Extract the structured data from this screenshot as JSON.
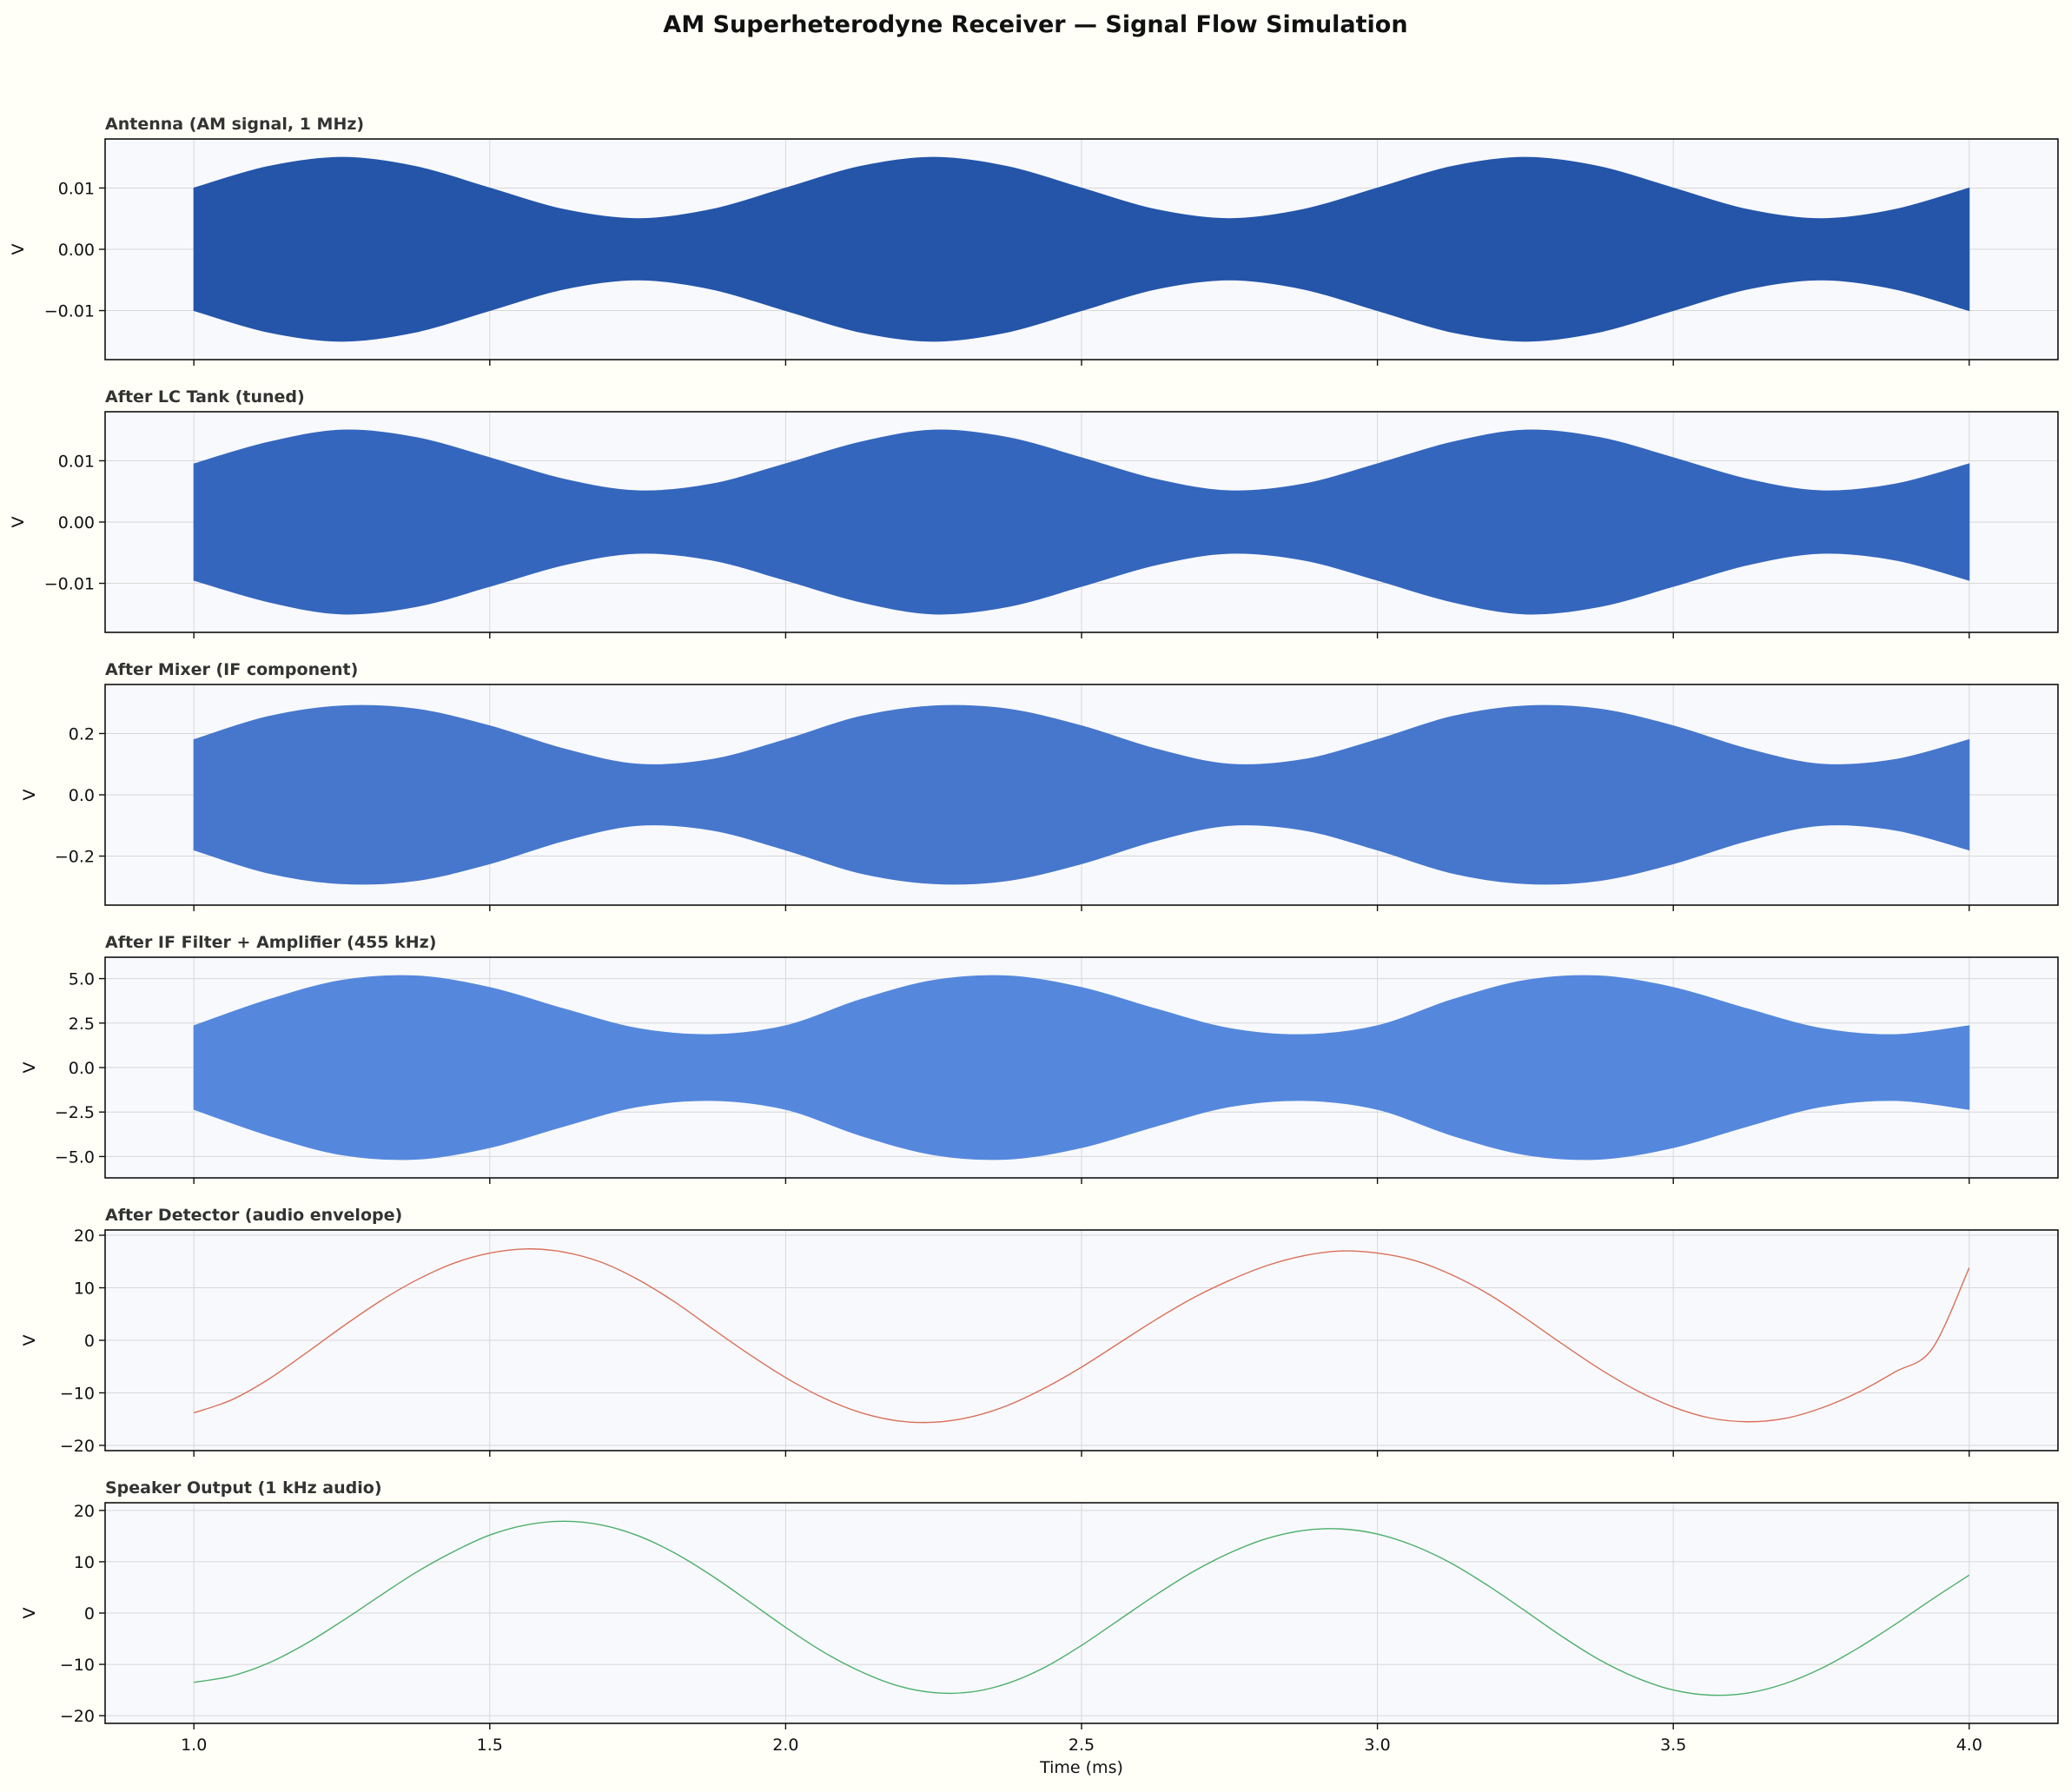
{
  "figure": {
    "title": "AM Superheterodyne Receiver — Signal Flow Simulation",
    "background": "#fffff8",
    "panel_background": "#f8f9fc"
  },
  "chart_data": [
    {
      "type": "line",
      "render": "band",
      "title": "Antenna (AM signal, 1 MHz)",
      "ylabel": "V",
      "xlabel": "",
      "xlim": [
        0.85,
        4.15
      ],
      "ylim": [
        -0.018,
        0.018
      ],
      "xticks": [
        1.0,
        1.5,
        2.0,
        2.5,
        3.0,
        3.5,
        4.0
      ],
      "yticks": [
        0.01,
        0.0,
        -0.01
      ],
      "ytick_labels": [
        "0.01",
        "0.00",
        "−0.01"
      ],
      "color": "#2455a9",
      "grid": true,
      "x": [
        1.0,
        1.125,
        1.25,
        1.375,
        1.5,
        1.625,
        1.75,
        1.875,
        2.0,
        2.125,
        2.25,
        2.375,
        2.5,
        2.625,
        2.75,
        2.875,
        3.0,
        3.125,
        3.25,
        3.375,
        3.5,
        3.625,
        3.75,
        3.875,
        4.0
      ],
      "upper": [
        0.01,
        0.0135,
        0.015,
        0.0135,
        0.01,
        0.0065,
        0.005,
        0.0065,
        0.01,
        0.0135,
        0.015,
        0.0135,
        0.01,
        0.0065,
        0.005,
        0.0065,
        0.01,
        0.0135,
        0.015,
        0.0135,
        0.01,
        0.0065,
        0.005,
        0.0065,
        0.01
      ],
      "lower": [
        -0.01,
        -0.0135,
        -0.015,
        -0.0135,
        -0.01,
        -0.0065,
        -0.005,
        -0.0065,
        -0.01,
        -0.0135,
        -0.015,
        -0.0135,
        -0.01,
        -0.0065,
        -0.005,
        -0.0065,
        -0.01,
        -0.0135,
        -0.015,
        -0.0135,
        -0.01,
        -0.0065,
        -0.005,
        -0.0065,
        -0.01
      ]
    },
    {
      "type": "line",
      "render": "band",
      "title": "After LC Tank (tuned)",
      "ylabel": "V",
      "xlabel": "",
      "xlim": [
        0.85,
        4.15
      ],
      "ylim": [
        -0.018,
        0.018
      ],
      "xticks": [
        1.0,
        1.5,
        2.0,
        2.5,
        3.0,
        3.5,
        4.0
      ],
      "yticks": [
        0.01,
        0.0,
        -0.01
      ],
      "ytick_labels": [
        "0.01",
        "0.00",
        "−0.01"
      ],
      "color": "#3566bd",
      "grid": true,
      "x": [
        1.0,
        1.125,
        1.25,
        1.375,
        1.5,
        1.625,
        1.75,
        1.875,
        2.0,
        2.125,
        2.25,
        2.375,
        2.5,
        2.625,
        2.75,
        2.875,
        3.0,
        3.125,
        3.25,
        3.375,
        3.5,
        3.625,
        3.75,
        3.875,
        4.0
      ],
      "upper": [
        0.0095,
        0.013,
        0.015,
        0.0138,
        0.0105,
        0.007,
        0.0051,
        0.0062,
        0.0095,
        0.013,
        0.015,
        0.0138,
        0.0105,
        0.007,
        0.0051,
        0.0062,
        0.0095,
        0.013,
        0.015,
        0.0138,
        0.0105,
        0.007,
        0.0051,
        0.0062,
        0.0095
      ],
      "lower": [
        -0.0095,
        -0.013,
        -0.015,
        -0.0138,
        -0.0105,
        -0.007,
        -0.0051,
        -0.0062,
        -0.0095,
        -0.013,
        -0.015,
        -0.0138,
        -0.0105,
        -0.007,
        -0.0051,
        -0.0062,
        -0.0095,
        -0.013,
        -0.015,
        -0.0138,
        -0.0105,
        -0.007,
        -0.0051,
        -0.0062,
        -0.0095
      ]
    },
    {
      "type": "line",
      "render": "band",
      "title": "After Mixer (IF component)",
      "ylabel": "V",
      "xlabel": "",
      "xlim": [
        0.85,
        4.15
      ],
      "ylim": [
        -0.36,
        0.36
      ],
      "xticks": [
        1.0,
        1.5,
        2.0,
        2.5,
        3.0,
        3.5,
        4.0
      ],
      "yticks": [
        0.2,
        0.0,
        -0.2
      ],
      "ytick_labels": [
        "0.2",
        "0.0",
        "−0.2"
      ],
      "color": "#4677cc",
      "grid": true,
      "x": [
        1.0,
        1.125,
        1.25,
        1.375,
        1.5,
        1.625,
        1.75,
        1.875,
        2.0,
        2.125,
        2.25,
        2.375,
        2.5,
        2.625,
        2.75,
        2.875,
        3.0,
        3.125,
        3.25,
        3.375,
        3.5,
        3.625,
        3.75,
        3.875,
        4.0
      ],
      "upper": [
        0.18,
        0.255,
        0.29,
        0.28,
        0.225,
        0.15,
        0.1,
        0.115,
        0.18,
        0.255,
        0.29,
        0.28,
        0.225,
        0.15,
        0.1,
        0.115,
        0.18,
        0.255,
        0.29,
        0.28,
        0.225,
        0.15,
        0.1,
        0.115,
        0.18
      ],
      "lower": [
        -0.18,
        -0.255,
        -0.29,
        -0.28,
        -0.225,
        -0.15,
        -0.1,
        -0.115,
        -0.18,
        -0.255,
        -0.29,
        -0.28,
        -0.225,
        -0.15,
        -0.1,
        -0.115,
        -0.18,
        -0.255,
        -0.29,
        -0.28,
        -0.225,
        -0.15,
        -0.1,
        -0.115,
        -0.18
      ]
    },
    {
      "type": "line",
      "render": "band",
      "title": "After IF Filter + Amplifier (455 kHz)",
      "ylabel": "V",
      "xlabel": "",
      "xlim": [
        0.85,
        4.15
      ],
      "ylim": [
        -6.2,
        6.2
      ],
      "xticks": [
        1.0,
        1.5,
        2.0,
        2.5,
        3.0,
        3.5,
        4.0
      ],
      "yticks": [
        5.0,
        2.5,
        0.0,
        -2.5,
        -5.0
      ],
      "ytick_labels": [
        "5.0",
        "2.5",
        "0.0",
        "−2.5",
        "−5.0"
      ],
      "color": "#5588dd",
      "grid": true,
      "x": [
        1.0,
        1.125,
        1.25,
        1.375,
        1.5,
        1.625,
        1.75,
        1.875,
        2.0,
        2.125,
        2.25,
        2.375,
        2.5,
        2.625,
        2.75,
        2.875,
        3.0,
        3.125,
        3.25,
        3.375,
        3.5,
        3.625,
        3.75,
        3.875,
        4.0
      ],
      "upper": [
        2.35,
        3.8,
        4.9,
        5.15,
        4.5,
        3.3,
        2.2,
        1.85,
        2.35,
        3.8,
        4.9,
        5.15,
        4.5,
        3.3,
        2.2,
        1.85,
        2.35,
        3.8,
        4.9,
        5.15,
        4.5,
        3.3,
        2.2,
        1.85,
        2.35
      ],
      "lower": [
        -2.35,
        -3.8,
        -4.9,
        -5.15,
        -4.5,
        -3.3,
        -2.2,
        -1.85,
        -2.35,
        -3.8,
        -4.9,
        -5.15,
        -4.5,
        -3.3,
        -2.2,
        -1.85,
        -2.35,
        -3.8,
        -4.9,
        -5.15,
        -4.5,
        -3.3,
        -2.2,
        -1.85,
        -2.35
      ]
    },
    {
      "type": "line",
      "render": "line",
      "title": "After Detector (audio envelope)",
      "ylabel": "V",
      "xlabel": "",
      "xlim": [
        0.85,
        4.15
      ],
      "ylim": [
        -21,
        21
      ],
      "xticks": [
        1.0,
        1.5,
        2.0,
        2.5,
        3.0,
        3.5,
        4.0
      ],
      "yticks": [
        20,
        10,
        0,
        -10,
        -20
      ],
      "ytick_labels": [
        "20",
        "10",
        "0",
        "−10",
        "−20"
      ],
      "color": "#d9705a",
      "grid": true,
      "x": [
        1.0,
        1.0625,
        1.125,
        1.1875,
        1.25,
        1.3125,
        1.375,
        1.4375,
        1.5,
        1.5625,
        1.625,
        1.6875,
        1.75,
        1.8125,
        1.875,
        1.9375,
        2.0,
        2.0625,
        2.125,
        2.1875,
        2.25,
        2.3125,
        2.375,
        2.4375,
        2.5,
        2.5625,
        2.625,
        2.6875,
        2.75,
        2.8125,
        2.875,
        2.9375,
        3.0,
        3.0625,
        3.125,
        3.1875,
        3.25,
        3.3125,
        3.375,
        3.4375,
        3.5,
        3.5625,
        3.625,
        3.6875,
        3.75,
        3.8125,
        3.875,
        3.9375,
        4.0
      ],
      "y": [
        -13.8,
        -11.4,
        -7.5,
        -2.6,
        2.5,
        7.3,
        11.4,
        14.6,
        16.6,
        17.4,
        16.8,
        14.9,
        11.6,
        7.3,
        2.3,
        -2.6,
        -7.1,
        -10.9,
        -13.7,
        -15.3,
        -15.6,
        -14.6,
        -12.4,
        -9.1,
        -5.1,
        -0.6,
        3.9,
        8.0,
        11.4,
        14.2,
        16.1,
        17.0,
        16.6,
        15.2,
        12.5,
        8.8,
        4.2,
        -0.7,
        -5.4,
        -9.5,
        -12.7,
        -14.8,
        -15.5,
        -14.9,
        -12.9,
        -9.9,
        -6.0,
        -1.6,
        13.8
      ],
      "y_note": ""
    },
    {
      "type": "line",
      "render": "line",
      "title": "Speaker Output (1 kHz audio)",
      "ylabel": "V",
      "xlabel": "Time (ms)",
      "xlim": [
        0.85,
        4.15
      ],
      "ylim": [
        -21.5,
        21.5
      ],
      "xticks": [
        1.0,
        1.5,
        2.0,
        2.5,
        3.0,
        3.5,
        4.0
      ],
      "xtick_labels": [
        "1.0",
        "1.5",
        "2.0",
        "2.5",
        "3.0",
        "3.5",
        "4.0"
      ],
      "yticks": [
        20,
        10,
        0,
        -10,
        -20
      ],
      "ytick_labels": [
        "20",
        "10",
        "0",
        "−10",
        "−20"
      ],
      "color": "#4caf6a",
      "grid": true,
      "x": [
        1.0,
        1.0625,
        1.125,
        1.1875,
        1.25,
        1.3125,
        1.375,
        1.4375,
        1.5,
        1.5625,
        1.625,
        1.6875,
        1.75,
        1.8125,
        1.875,
        1.9375,
        2.0,
        2.0625,
        2.125,
        2.1875,
        2.25,
        2.3125,
        2.375,
        2.4375,
        2.5,
        2.5625,
        2.625,
        2.6875,
        2.75,
        2.8125,
        2.875,
        2.9375,
        3.0,
        3.0625,
        3.125,
        3.1875,
        3.25,
        3.3125,
        3.375,
        3.4375,
        3.5,
        3.5625,
        3.625,
        3.6875,
        3.75,
        3.8125,
        3.875,
        3.9375,
        4.0
      ],
      "y": [
        -13.5,
        -12.3,
        -9.8,
        -6.1,
        -1.6,
        3.2,
        7.9,
        11.9,
        15.2,
        17.2,
        17.9,
        17.2,
        15.1,
        11.7,
        7.3,
        2.3,
        -2.8,
        -7.5,
        -11.3,
        -14.1,
        -15.5,
        -15.4,
        -13.7,
        -10.6,
        -6.3,
        -1.4,
        3.5,
        8.0,
        11.7,
        14.5,
        16.1,
        16.4,
        15.4,
        13.1,
        9.7,
        5.3,
        0.4,
        -4.6,
        -9.1,
        -12.6,
        -15.0,
        -16.0,
        -15.6,
        -13.8,
        -10.8,
        -6.8,
        -2.2,
        2.7,
        7.4
      ]
    }
  ]
}
